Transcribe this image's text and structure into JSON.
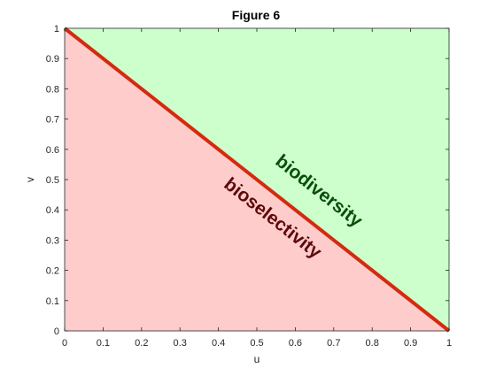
{
  "window": {
    "title": "Figure 6"
  },
  "chart_data": {
    "type": "area",
    "title": "Figure 6",
    "xlabel": "u",
    "ylabel": "v",
    "xlim": [
      0,
      1
    ],
    "ylim": [
      0,
      1
    ],
    "xticks": [
      0,
      0.1,
      0.2,
      0.3,
      0.4,
      0.5,
      0.6,
      0.7,
      0.8,
      0.9,
      1
    ],
    "xtick_labels": [
      "0",
      "0.1",
      "0.2",
      "0.3",
      "0.4",
      "0.5",
      "0.6",
      "0.7",
      "0.8",
      "0.9",
      "1"
    ],
    "yticks": [
      0,
      0.1,
      0.2,
      0.3,
      0.4,
      0.5,
      0.6,
      0.7,
      0.8,
      0.9,
      1
    ],
    "ytick_labels": [
      "0",
      "0.1",
      "0.2",
      "0.3",
      "0.4",
      "0.5",
      "0.6",
      "0.7",
      "0.8",
      "0.9",
      "1"
    ],
    "grid": false,
    "line": {
      "x": [
        0,
        1
      ],
      "y": [
        1,
        0
      ],
      "color": "#d42a0e"
    },
    "regions": [
      {
        "label": "biodiversity",
        "polygon": [
          [
            0,
            1
          ],
          [
            1,
            1
          ],
          [
            1,
            0
          ]
        ],
        "fill": "#ccffcc",
        "text_color": "#0a4d0a",
        "label_anchor": [
          0.66,
          0.46
        ]
      },
      {
        "label": "bioselectivity",
        "polygon": [
          [
            0,
            0
          ],
          [
            0,
            1
          ],
          [
            1,
            0
          ]
        ],
        "fill": "#ffcccc",
        "text_color": "#5c0a0a",
        "label_anchor": [
          0.54,
          0.37
        ]
      }
    ]
  }
}
